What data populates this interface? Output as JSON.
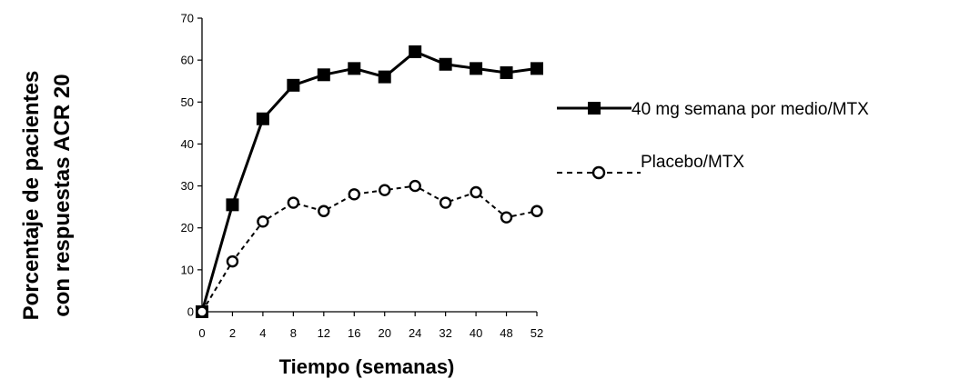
{
  "chart_data": {
    "type": "line",
    "title": "",
    "xlabel": "Tiempo (semanas)",
    "ylabel_lines": [
      "Porcentaje de pacientes",
      "con respuestas ACR 20"
    ],
    "categories": [
      "0",
      "2",
      "4",
      "8",
      "12",
      "16",
      "20",
      "24",
      "32",
      "40",
      "48",
      "52"
    ],
    "ylim": [
      0,
      70
    ],
    "yticks": [
      0,
      10,
      20,
      30,
      40,
      50,
      60,
      70
    ],
    "grid": false,
    "legend_position": "right",
    "series": [
      {
        "name": "40 mg semana por medio/MTX",
        "values": [
          0,
          25.5,
          46,
          54,
          56.5,
          58,
          56,
          62,
          59,
          58,
          57,
          58
        ],
        "line_style": "solid",
        "marker": "filled-square",
        "color": "#000000"
      },
      {
        "name": "Placebo/MTX",
        "values": [
          0,
          12,
          21.5,
          26,
          24,
          28,
          29,
          30,
          26,
          28.5,
          22.5,
          24
        ],
        "line_style": "dashed",
        "marker": "open-circle",
        "color": "#000000"
      }
    ]
  }
}
